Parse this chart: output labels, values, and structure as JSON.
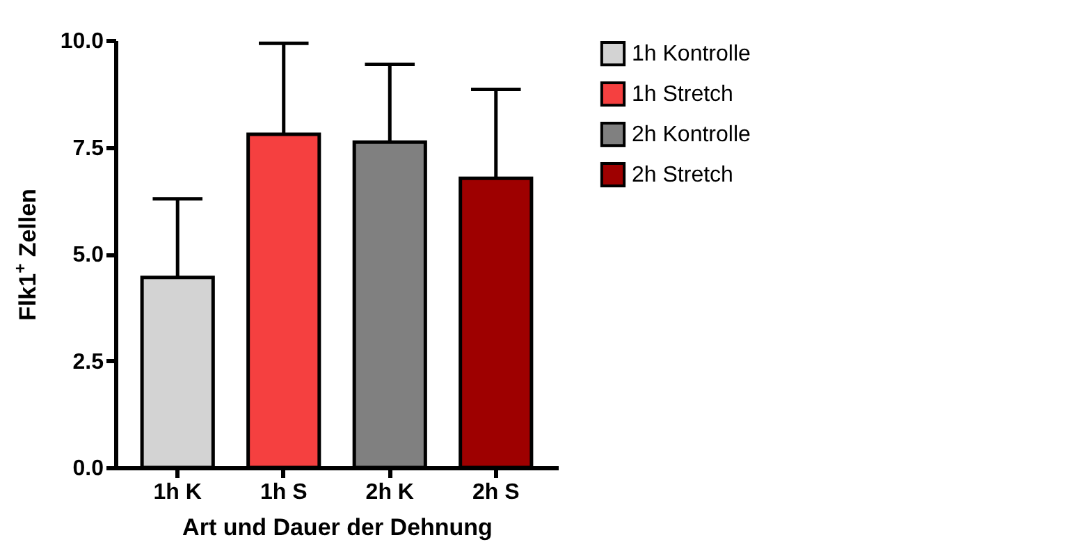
{
  "chart_data": {
    "type": "bar",
    "xlabel": "Art und Dauer der Dehnung",
    "ylabel": "Flk1$^{+}$ Zellen",
    "categories": [
      "1h K",
      "1h S",
      "2h K",
      "2h S"
    ],
    "series": [
      {
        "name": "1h Kontrolle",
        "color": "#d3d3d3",
        "values": [
          4.45,
          null,
          null,
          null
        ],
        "errors": [
          [
            4.45,
            6.29
          ],
          null,
          null,
          null
        ]
      },
      {
        "name": "1h Stretch",
        "color": "#f54040",
        "values": [
          null,
          7.8,
          null,
          null
        ],
        "errors": [
          null,
          [
            7.8,
            9.93
          ],
          null,
          null
        ]
      },
      {
        "name": "2h Kontrolle",
        "color": "#808080",
        "values": [
          null,
          null,
          7.62,
          null
        ],
        "errors": [
          null,
          null,
          [
            7.62,
            9.44
          ],
          null
        ]
      },
      {
        "name": "2h Stretch",
        "color": "#9e0000",
        "values": [
          null,
          null,
          null,
          6.77
        ],
        "errors": [
          null,
          null,
          null,
          [
            6.77,
            8.85
          ]
        ]
      }
    ],
    "ylim": [
      0,
      10
    ],
    "yticks": [
      {
        "value": 0,
        "label": "0.0"
      },
      {
        "value": 2.5,
        "label": "2.5"
      },
      {
        "value": 5,
        "label": "5.0"
      },
      {
        "value": 7.5,
        "label": "7.5"
      },
      {
        "value": 10,
        "label": "10.0"
      }
    ],
    "legend": "top right"
  }
}
